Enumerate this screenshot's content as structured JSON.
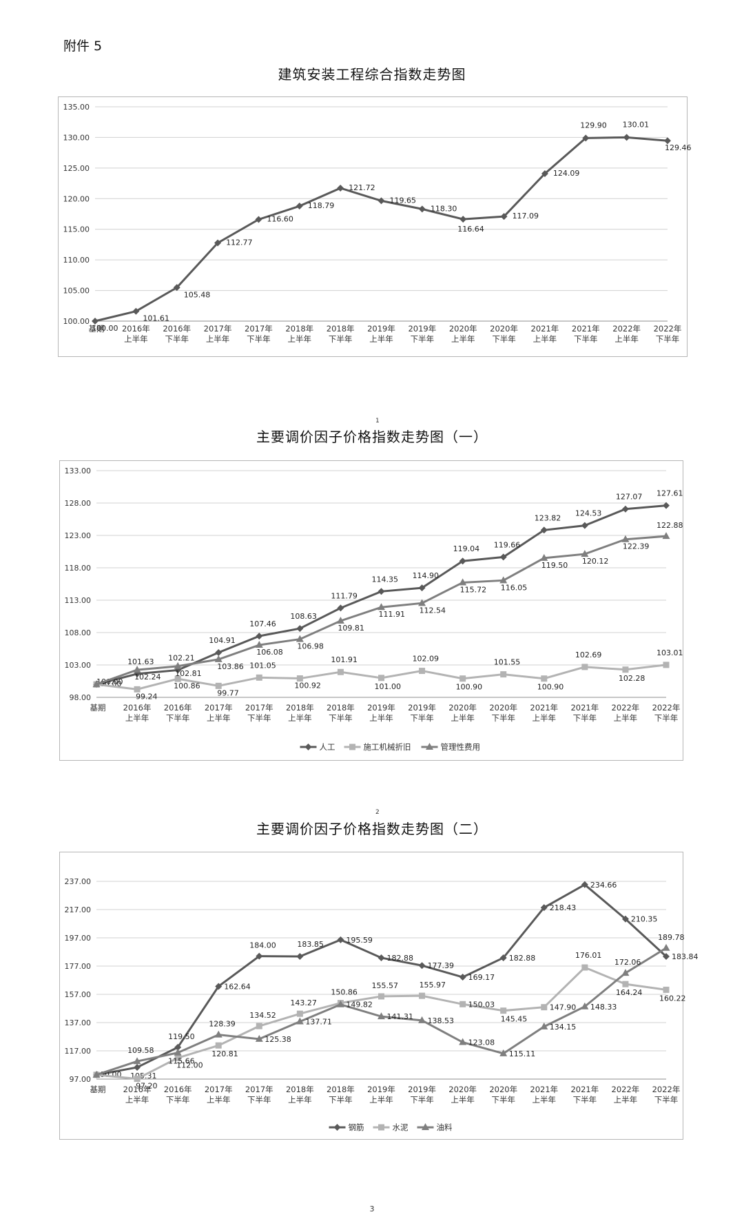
{
  "page": {
    "attachment_label": "附件 5",
    "page_number": "3"
  },
  "chart_data": [
    {
      "type": "line",
      "title": "建筑安装工程综合指数走势图",
      "footnote": "",
      "categories": [
        [
          "基期"
        ],
        [
          "2016年",
          "上半年"
        ],
        [
          "2016年",
          "下半年"
        ],
        [
          "2017年",
          "上半年"
        ],
        [
          "2017年",
          "下半年"
        ],
        [
          "2018年",
          "上半年"
        ],
        [
          "2018年",
          "下半年"
        ],
        [
          "2019年",
          "上半年"
        ],
        [
          "2019年",
          "下半年"
        ],
        [
          "2020年",
          "上半年"
        ],
        [
          "2020年",
          "下半年"
        ],
        [
          "2021年",
          "上半年"
        ],
        [
          "2021年",
          "下半年"
        ],
        [
          "2022年",
          "上半年"
        ],
        [
          "2022年",
          "下半年"
        ]
      ],
      "ylim": [
        100,
        135
      ],
      "ytick_step": 5,
      "ytick_labels": [
        "100.00",
        "105.00",
        "110.00",
        "115.00",
        "120.00",
        "125.00",
        "130.00",
        "135.00"
      ],
      "grid": true,
      "legend": "none",
      "series": [
        {
          "name": "",
          "color": "#595959",
          "marker": "diamond",
          "values": [
            100.0,
            101.61,
            105.48,
            112.77,
            116.6,
            118.79,
            121.72,
            119.65,
            118.3,
            116.64,
            117.09,
            124.09,
            129.9,
            130.01,
            129.46
          ],
          "labels": [
            "100.00",
            "101.61",
            "105.48",
            "112.77",
            "116.60",
            "118.79",
            "121.72",
            "119.65",
            "118.30",
            "116.64",
            "117.09",
            "124.09",
            "129.90",
            "130.01",
            "129.46"
          ]
        }
      ]
    },
    {
      "type": "line",
      "title": "主要调价因子价格指数走势图（一）",
      "footnote": "1",
      "categories": [
        [
          "基期"
        ],
        [
          "2016年",
          "上半年"
        ],
        [
          "2016年",
          "下半年"
        ],
        [
          "2017年",
          "上半年"
        ],
        [
          "2017年",
          "下半年"
        ],
        [
          "2018年",
          "上半年"
        ],
        [
          "2018年",
          "下半年"
        ],
        [
          "2019年",
          "上半年"
        ],
        [
          "2019年",
          "下半年"
        ],
        [
          "2020年",
          "上半年"
        ],
        [
          "2020年",
          "下半年"
        ],
        [
          "2021年",
          "上半年"
        ],
        [
          "2021年",
          "下半年"
        ],
        [
          "2022年",
          "上半年"
        ],
        [
          "2022年",
          "下半年"
        ]
      ],
      "ylim": [
        98,
        133
      ],
      "ytick_step": 5,
      "ytick_labels": [
        "98.00",
        "103.00",
        "108.00",
        "113.00",
        "118.00",
        "123.00",
        "128.00",
        "133.00"
      ],
      "grid": true,
      "legend": "bottom",
      "series": [
        {
          "name": "人工",
          "color": "#595959",
          "marker": "diamond",
          "values": [
            100.0,
            101.63,
            102.21,
            104.91,
            107.46,
            108.63,
            111.79,
            114.35,
            114.9,
            119.04,
            119.66,
            123.82,
            124.53,
            127.07,
            127.61
          ],
          "labels": [
            "100.00",
            "101.63",
            "102.21",
            "104.91",
            "107.46",
            "108.63",
            "111.79",
            "114.35",
            "114.90",
            "119.04",
            "119.66",
            "123.82",
            "124.53",
            "127.07",
            "127.61"
          ]
        },
        {
          "name": "施工机械折旧",
          "color": "#b3b3b3",
          "marker": "square",
          "values": [
            100.0,
            99.24,
            100.86,
            99.77,
            101.05,
            100.92,
            101.91,
            101.0,
            102.09,
            100.9,
            101.55,
            100.9,
            102.69,
            102.28,
            103.01
          ],
          "labels": [
            "100.00",
            "99.24",
            "100.86",
            "99.77",
            "101.05",
            "100.92",
            "101.91",
            "101.00",
            "102.09",
            "100.90",
            "101.55",
            "100.90",
            "102.69",
            "102.28",
            "103.01"
          ]
        },
        {
          "name": "管理性费用",
          "color": "#7f7f7f",
          "marker": "triangle",
          "values": [
            100.0,
            102.24,
            102.81,
            103.86,
            106.08,
            106.98,
            109.81,
            111.91,
            112.54,
            115.72,
            116.05,
            119.5,
            120.12,
            122.39,
            122.88
          ],
          "labels": [
            "",
            "102.24",
            "102.81",
            "103.86",
            "106.08",
            "106.98",
            "109.81",
            "111.91",
            "112.54",
            "115.72",
            "116.05",
            "119.50",
            "120.12",
            "122.39",
            "122.88"
          ]
        }
      ]
    },
    {
      "type": "line",
      "title": "主要调价因子价格指数走势图（二）",
      "footnote": "2",
      "categories": [
        [
          "基期"
        ],
        [
          "2016年",
          "上半年"
        ],
        [
          "2016年",
          "下半年"
        ],
        [
          "2017年",
          "上半年"
        ],
        [
          "2017年",
          "下半年"
        ],
        [
          "2018年",
          "上半年"
        ],
        [
          "2018年",
          "下半年"
        ],
        [
          "2019年",
          "上半年"
        ],
        [
          "2019年",
          "下半年"
        ],
        [
          "2020年",
          "上半年"
        ],
        [
          "2020年",
          "下半年"
        ],
        [
          "2021年",
          "上半年"
        ],
        [
          "2021年",
          "下半年"
        ],
        [
          "2022年",
          "上半年"
        ],
        [
          "2022年",
          "下半年"
        ]
      ],
      "ylim": [
        97,
        237
      ],
      "ytick_step": 20,
      "ytick_labels": [
        "97.00",
        "117.00",
        "137.00",
        "157.00",
        "177.00",
        "197.00",
        "217.00",
        "237.00"
      ],
      "grid": true,
      "legend": "bottom",
      "series": [
        {
          "name": "钢筋",
          "color": "#595959",
          "marker": "diamond",
          "values": [
            100.0,
            105.31,
            119.5,
            162.64,
            184.0,
            183.85,
            195.59,
            182.88,
            177.39,
            169.17,
            182.88,
            218.43,
            234.66,
            210.35,
            183.84
          ],
          "labels": [
            "100.00",
            "105.31",
            "119.50",
            "162.64",
            "184.00",
            "183.85",
            "195.59",
            "182.88",
            "177.39",
            "169.17",
            "182.88",
            "218.43",
            "234.66",
            "210.35",
            "183.84"
          ]
        },
        {
          "name": "水泥",
          "color": "#b3b3b3",
          "marker": "square",
          "values": [
            100.0,
            97.2,
            112.0,
            120.81,
            134.52,
            143.27,
            150.86,
            155.57,
            155.97,
            150.03,
            145.45,
            147.9,
            176.01,
            164.24,
            160.22
          ],
          "labels": [
            "",
            "97.20",
            "112.00",
            "120.81",
            "134.52",
            "143.27",
            "150.86",
            "155.57",
            "155.97",
            "150.03",
            "145.45",
            "147.90",
            "176.01",
            "164.24",
            "160.22"
          ]
        },
        {
          "name": "油料",
          "color": "#7f7f7f",
          "marker": "triangle",
          "values": [
            100.0,
            109.58,
            115.66,
            128.39,
            125.38,
            137.71,
            149.82,
            141.31,
            138.53,
            123.08,
            115.11,
            134.15,
            148.33,
            172.06,
            189.78
          ],
          "labels": [
            "",
            "109.58",
            "115.66",
            "128.39",
            "125.38",
            "137.71",
            "149.82",
            "141.31",
            "138.53",
            "123.08",
            "115.11",
            "134.15",
            "148.33",
            "172.06",
            "189.78"
          ]
        }
      ]
    }
  ]
}
